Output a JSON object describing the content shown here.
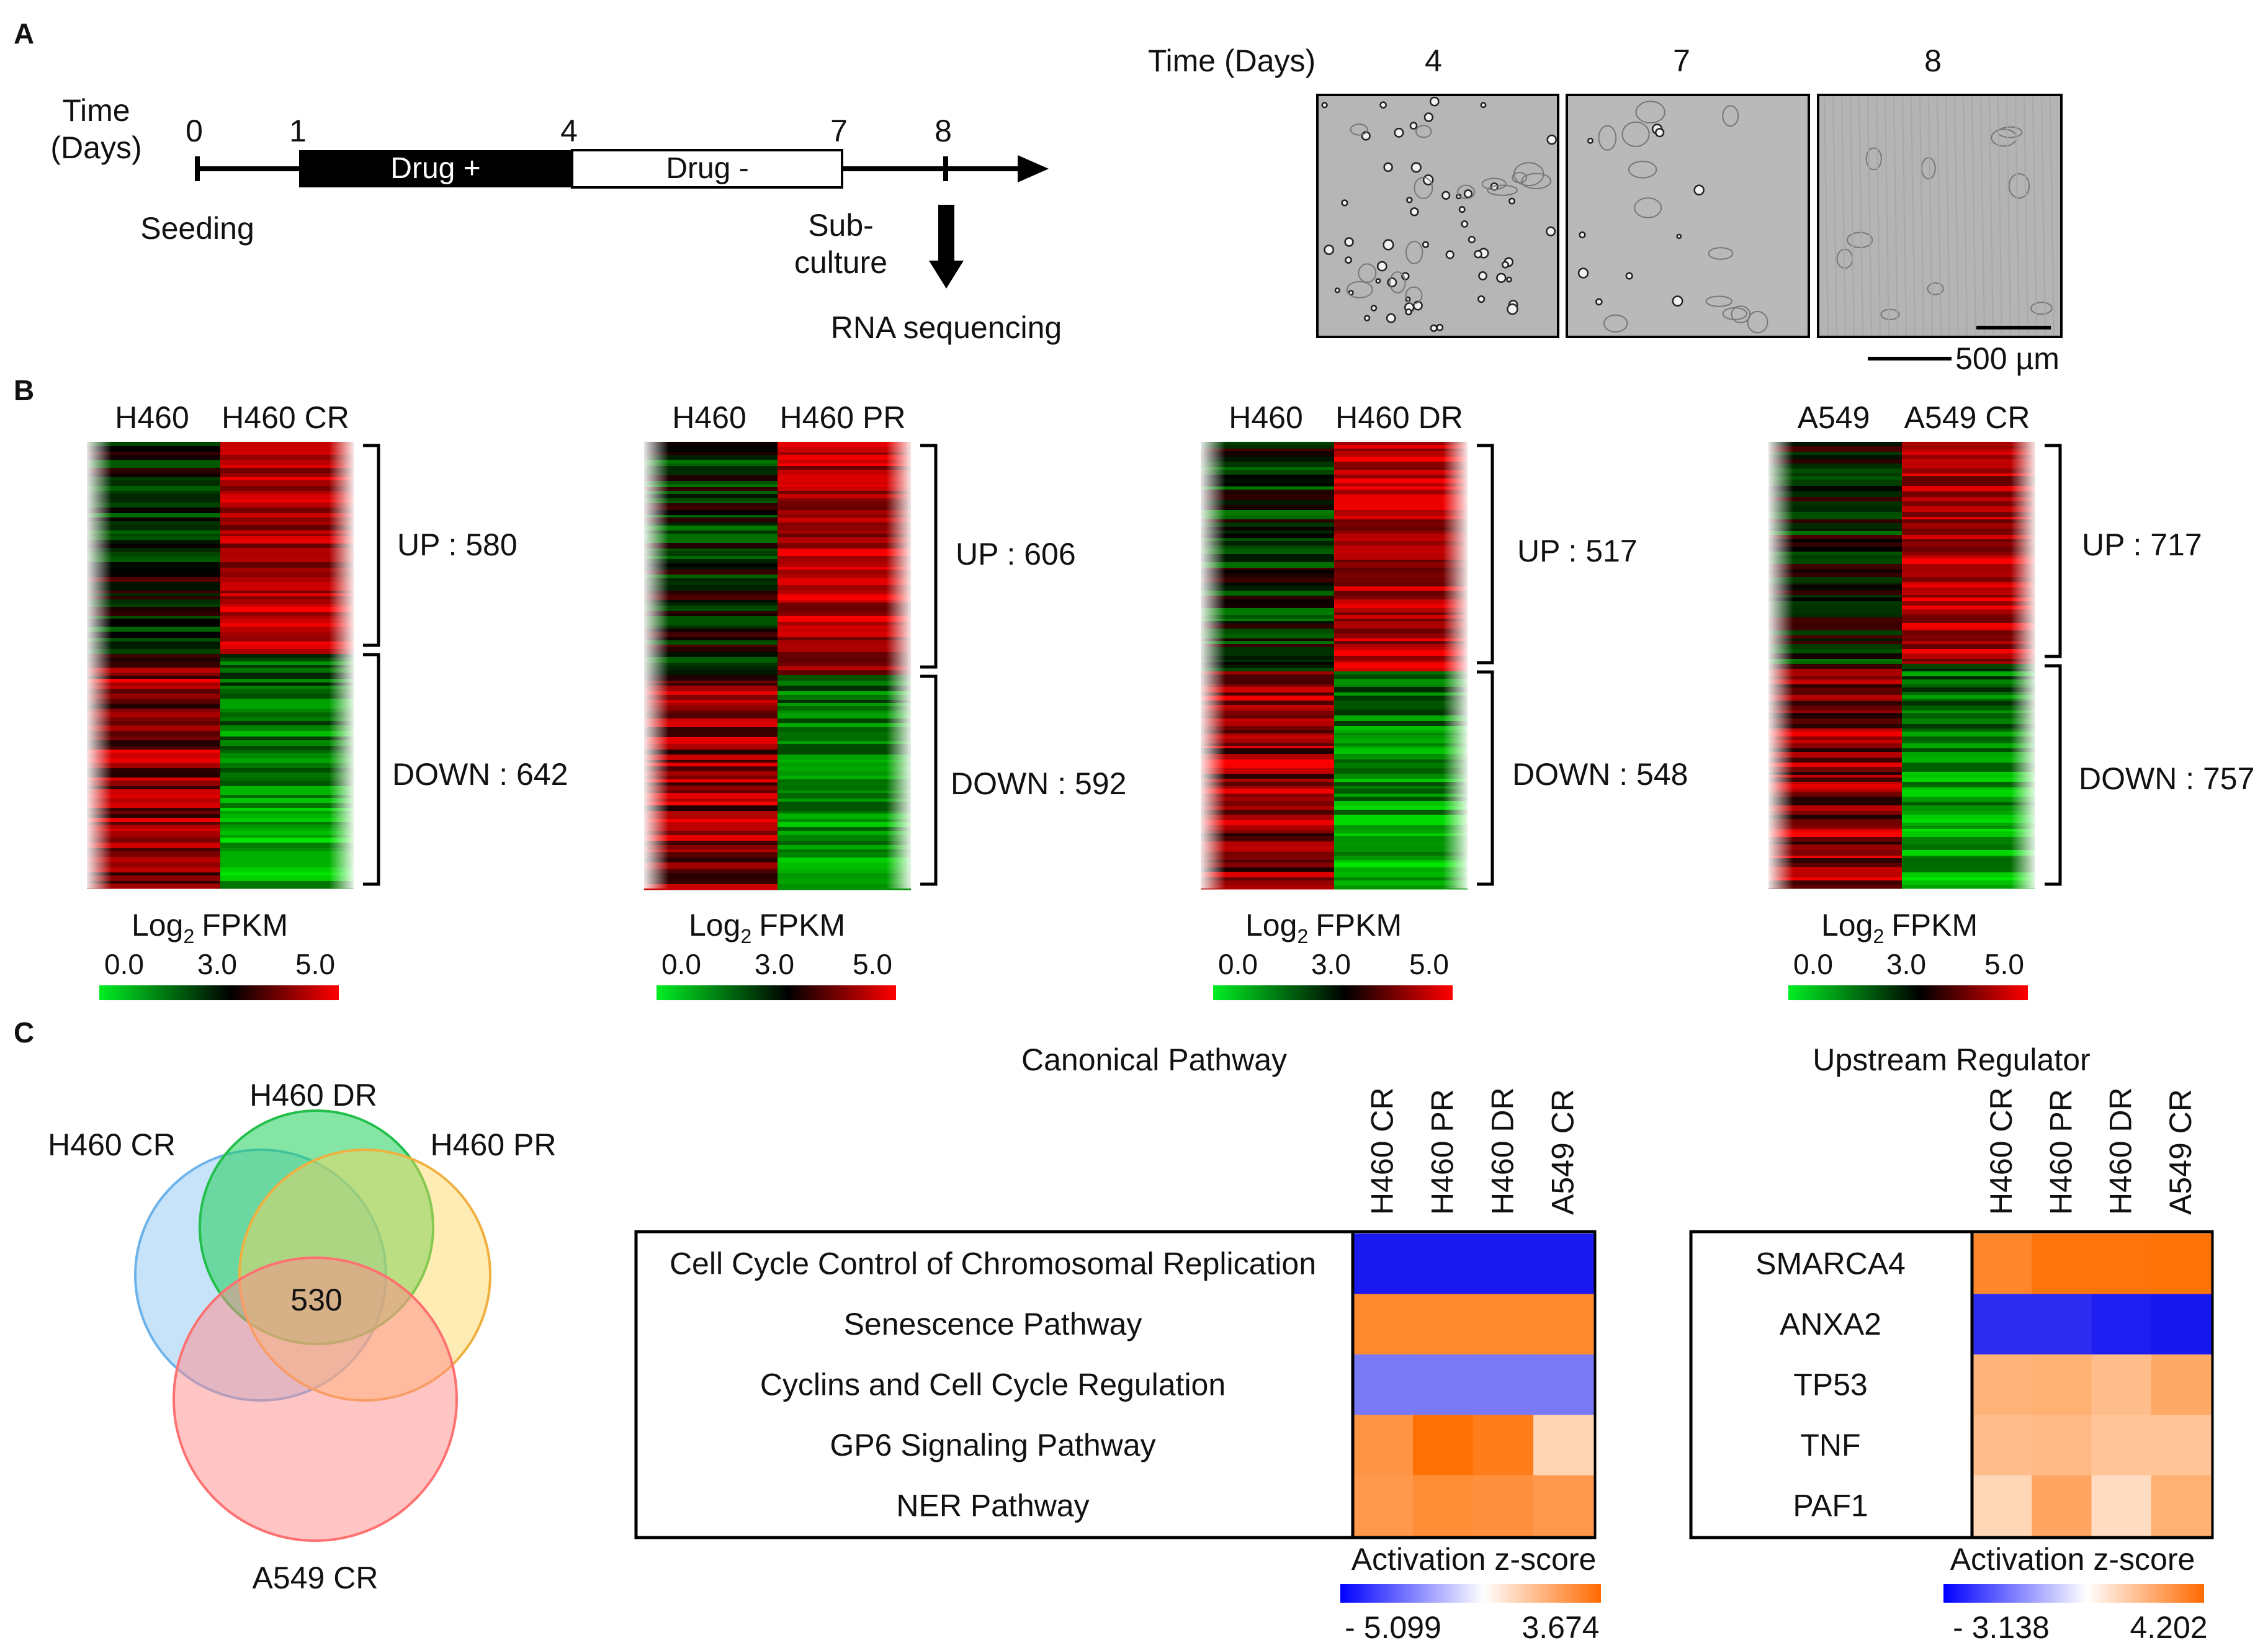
{
  "panels": {
    "a": "A",
    "b": "B",
    "c": "C"
  },
  "timeline": {
    "axis_label": [
      "Time",
      "(Days)"
    ],
    "ticks": [
      "0",
      "1",
      "4",
      "7",
      "8"
    ],
    "drug_on": "Drug +",
    "drug_off": "Drug -",
    "seeding": "Seeding",
    "subculture": [
      "Sub-",
      "culture"
    ],
    "rna_seq": "RNA sequencing"
  },
  "micrographs": {
    "header": "Time (Days)",
    "days": [
      "4",
      "7",
      "8"
    ],
    "scale_bar": "500 µm"
  },
  "heatmaps": [
    {
      "col1": "H460",
      "col2": "H460 CR",
      "up": "UP : 580",
      "down": "DOWN : 642"
    },
    {
      "col1": "H460",
      "col2": "H460 PR",
      "up": "UP : 606",
      "down": "DOWN : 592"
    },
    {
      "col1": "H460",
      "col2": "H460 DR",
      "up": "UP : 517",
      "down": "DOWN : 548"
    },
    {
      "col1": "A549",
      "col2": "A549 CR",
      "up": "UP : 717",
      "down": "DOWN : 757"
    }
  ],
  "fpkm_legend": {
    "title": "Log",
    "subscript": "2",
    "title_suffix": "FPKM",
    "ticks": [
      "0.0",
      "3.0",
      "5.0"
    ]
  },
  "venn": {
    "sets": [
      "H460 CR",
      "H460 DR",
      "H460 PR",
      "A549 CR"
    ],
    "intersection": "530"
  },
  "chart_data": [
    {
      "type": "heatmap",
      "title": "Canonical Pathway",
      "columns": [
        "H460 CR",
        "H460 PR",
        "H460 DR",
        "A549 CR"
      ],
      "rows": [
        "Cell Cycle Control of Chromosomal Replication",
        "Senescence Pathway",
        "Cyclins and Cell Cycle Regulation",
        "GP6 Signaling Pathway",
        "NER Pathway"
      ],
      "values": [
        [
          -5.0,
          -5.0,
          -5.0,
          -5.0
        ],
        [
          3.0,
          3.0,
          3.0,
          3.0
        ],
        [
          -2.9,
          -2.9,
          -2.9,
          -2.9
        ],
        [
          2.7,
          3.6,
          3.3,
          1.1
        ],
        [
          2.6,
          2.9,
          2.8,
          2.6
        ]
      ],
      "colorbar_label": "Activation z-score",
      "range": [
        -5.099,
        3.674
      ],
      "range_labels": [
        "- 5.099",
        "3.674"
      ]
    },
    {
      "type": "heatmap",
      "title": "Upstream Regulator",
      "columns": [
        "H460 CR",
        "H460 PR",
        "H460 DR",
        "A549 CR"
      ],
      "rows": [
        "SMARCA4",
        "ANXA2",
        "TP53",
        "TNF",
        "PAF1"
      ],
      "values": [
        [
          3.5,
          4.0,
          4.0,
          4.1
        ],
        [
          -2.8,
          -2.8,
          -3.0,
          -3.1
        ],
        [
          2.2,
          2.3,
          1.9,
          2.5
        ],
        [
          1.9,
          2.0,
          1.7,
          1.7
        ],
        [
          1.2,
          2.6,
          1.0,
          2.3
        ]
      ],
      "colorbar_label": "Activation z-score",
      "range": [
        -3.138,
        4.202
      ],
      "range_labels": [
        "- 3.138",
        "4.202"
      ]
    }
  ]
}
